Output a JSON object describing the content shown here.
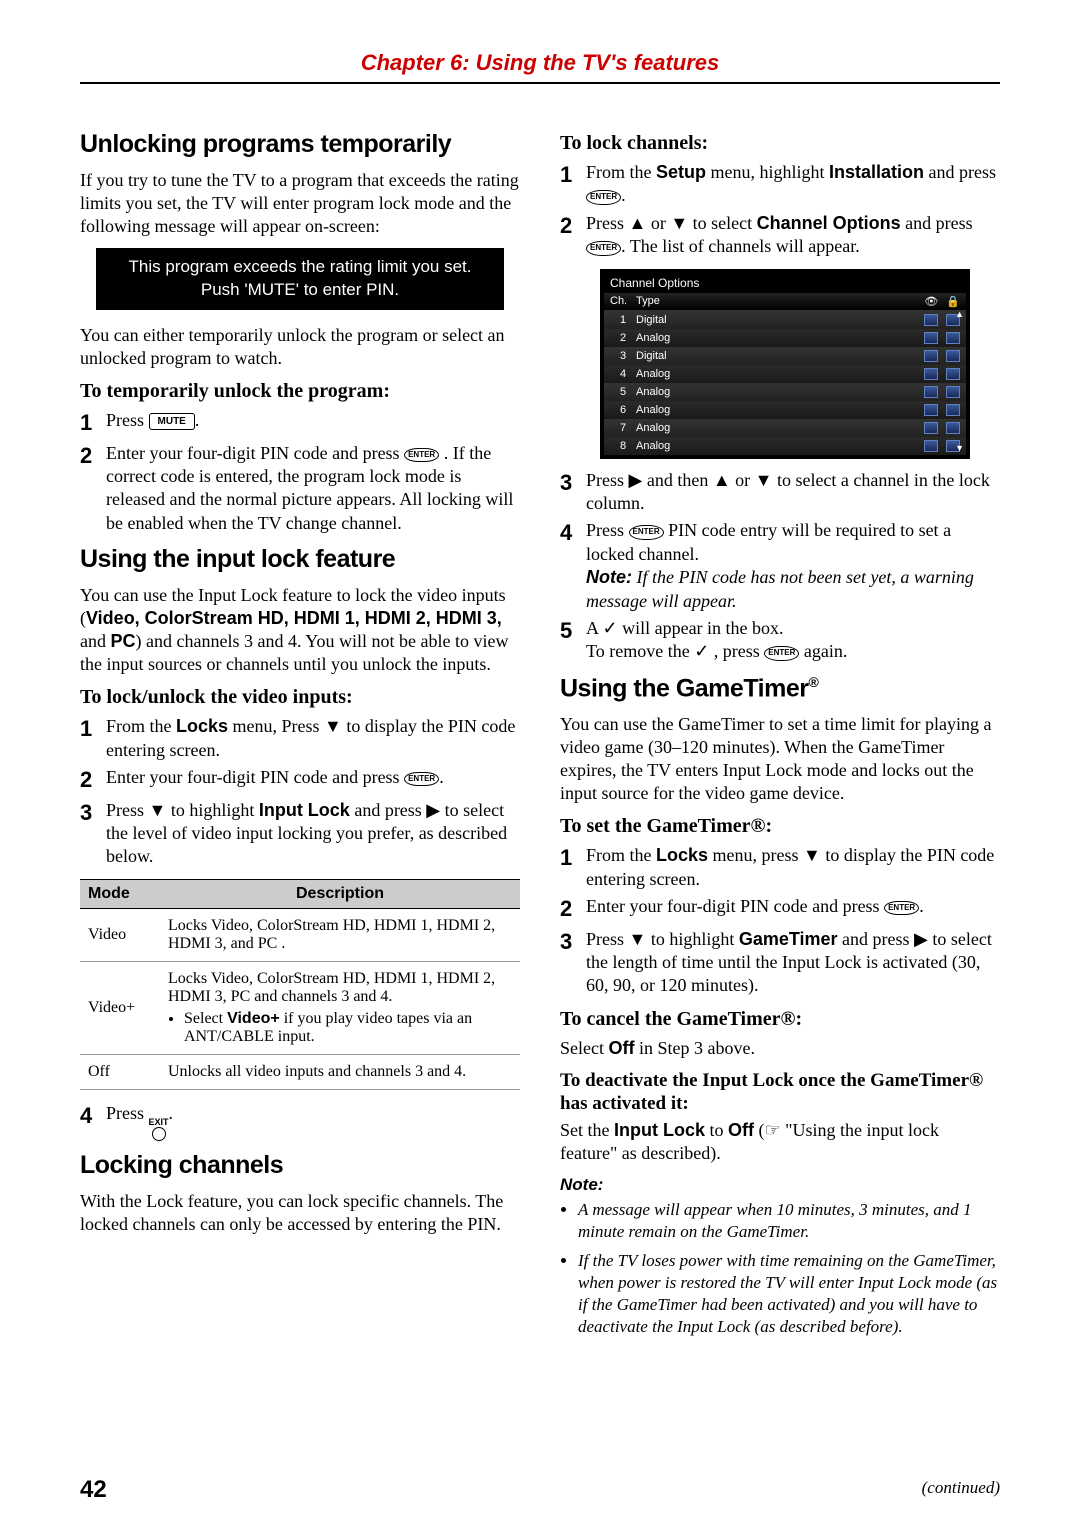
{
  "chapter_title": "Chapter 6: Using the TV's features",
  "left": {
    "h_unlock": "Unlocking programs temporarily",
    "p_unlock": "If you try to tune the TV to a program that exceeds the rating limits you set, the TV will enter program lock mode and the following message will appear on-screen:",
    "blackbox1": "This program exceeds the rating limit you set.",
    "blackbox2": "Push 'MUTE' to enter PIN.",
    "p_unlock2": "You can either temporarily unlock the program or select an unlocked program to watch.",
    "sub_temp": "To temporarily unlock the program:",
    "step_temp1a": "Press ",
    "step_temp1b": ".",
    "step_temp2a": "Enter your four-digit PIN code and press ",
    "step_temp2b": " . If the correct code is entered, the program lock mode is released and the normal picture appears. All locking will be enabled when the TV change channel.",
    "h_inputlock": "Using the input lock feature",
    "p_inputlock1a": "You can use the Input Lock feature to lock the video inputs (",
    "p_inputlock1_bold": "Video, ColorStream HD, HDMI 1, HDMI 2, HDMI 3,",
    "p_inputlock1b": " and ",
    "p_inputlock1_pc": "PC",
    "p_inputlock1c": ") and channels 3 and 4. You will not be able to view the input sources or channels until you unlock the inputs.",
    "sub_lockunlock": "To lock/unlock the video inputs:",
    "step_li1a": "From the ",
    "step_li1_locks": "Locks",
    "step_li1b": " menu, Press ▼ to display the PIN code entering screen.",
    "step_li2a": "Enter your four-digit PIN code and press ",
    "step_li2b": ".",
    "step_li3a": "Press ▼ to highlight ",
    "step_li3_il": "Input Lock",
    "step_li3b": " and press ▶ to select the level of video input locking you prefer, as described below.",
    "table": {
      "h_mode": "Mode",
      "h_desc": "Description",
      "rows": [
        {
          "mode": "Video",
          "desc": "Locks Video, ColorStream HD, HDMI 1, HDMI 2, HDMI 3, and PC ."
        },
        {
          "mode": "Video+",
          "desc": "Locks Video, ColorStream HD, HDMI 1, HDMI 2, HDMI 3, PC and channels 3 and 4.",
          "bullet_pre": "Select ",
          "bullet_b": "Video+",
          "bullet_post": " if you play video tapes via an ANT/CABLE input."
        },
        {
          "mode": "Off",
          "desc": "Unlocks all video inputs and channels 3 and 4."
        }
      ]
    },
    "step_li4a": "Press ",
    "step_li4b": ".",
    "h_lockch": "Locking channels",
    "p_lockch": "With the Lock feature, you can lock specific channels. The locked channels can only be accessed by entering the PIN."
  },
  "right": {
    "sub_tolock": "To lock channels:",
    "step_lc1a": "From the ",
    "step_lc1_setup": "Setup",
    "step_lc1b": " menu, highlight ",
    "step_lc1_inst": "Installation",
    "step_lc1c": " and press ",
    "step_lc1d": ".",
    "step_lc2a": "Press ▲ or ▼ to select ",
    "step_lc2_co": "Channel Options",
    "step_lc2b": " and press ",
    "step_lc2c": ". The list of channels will appear.",
    "chopts": {
      "title": "Channel Options",
      "h_ch": "Ch.",
      "h_type": "Type",
      "rows": [
        {
          "ch": "1",
          "type": "Digital"
        },
        {
          "ch": "2",
          "type": "Analog"
        },
        {
          "ch": "3",
          "type": "Digital"
        },
        {
          "ch": "4",
          "type": "Analog"
        },
        {
          "ch": "5",
          "type": "Analog"
        },
        {
          "ch": "6",
          "type": "Analog"
        },
        {
          "ch": "7",
          "type": "Analog"
        },
        {
          "ch": "8",
          "type": "Analog"
        }
      ]
    },
    "step_lc3": "Press ▶ and then ▲ or ▼ to select a channel in the lock column.",
    "step_lc4a": "Press ",
    "step_lc4b": " PIN code entry will be required to set a locked channel.",
    "step_lc4_note_b": "Note:",
    "step_lc4_note": " If the PIN code has not been set yet, a warning message will appear.",
    "step_lc5a": "A ✓ will appear in the box.",
    "step_lc5b": "To remove the ✓ , press ",
    "step_lc5c": " again.",
    "h_gt": "Using the GameTimer",
    "p_gt": "You can use the GameTimer to set a time limit for playing a video game (30–120 minutes). When the GameTimer expires, the TV enters Input Lock mode and locks out the input source for the video game device.",
    "sub_setgt": "To set the GameTimer®:",
    "step_gt1a": "From the ",
    "step_gt1_locks": "Locks",
    "step_gt1b": " menu, press ▼ to display the PIN code entering screen.",
    "step_gt2a": "Enter your four-digit PIN code and press ",
    "step_gt2b": ".",
    "step_gt3a": "Press ▼ to highlight ",
    "step_gt3_gt": "GameTimer",
    "step_gt3b": " and press ▶ to select the length of time until the Input Lock is activated (30, 60, 90, or 120 minutes).",
    "sub_cancelgt": "To cancel the GameTimer®:",
    "p_cancelgt_a": "Select ",
    "p_cancelgt_off": "Off",
    "p_cancelgt_b": " in Step 3 above.",
    "sub_deact": "To deactivate the Input Lock once the GameTimer® has activated it:",
    "p_deact_a": "Set the ",
    "p_deact_il": "Input Lock",
    "p_deact_b": " to ",
    "p_deact_off": "Off",
    "p_deact_c": " (☞ \"Using the input lock feature\" as described).",
    "note_hdr": "Note:",
    "note1": "A message will appear when 10 minutes, 3 minutes, and 1 minute remain on the GameTimer.",
    "note2": "If the TV loses power with time remaining on the GameTimer, when power is restored the TV will enter Input Lock mode (as if the GameTimer had been activated) and you will have to deactivate the Input Lock (as described before)."
  },
  "page": "42",
  "continued": "(continued)",
  "mute_label": "MUTE",
  "enter_label": "ENTER",
  "exit_label": "EXIT",
  "reg": "®"
}
